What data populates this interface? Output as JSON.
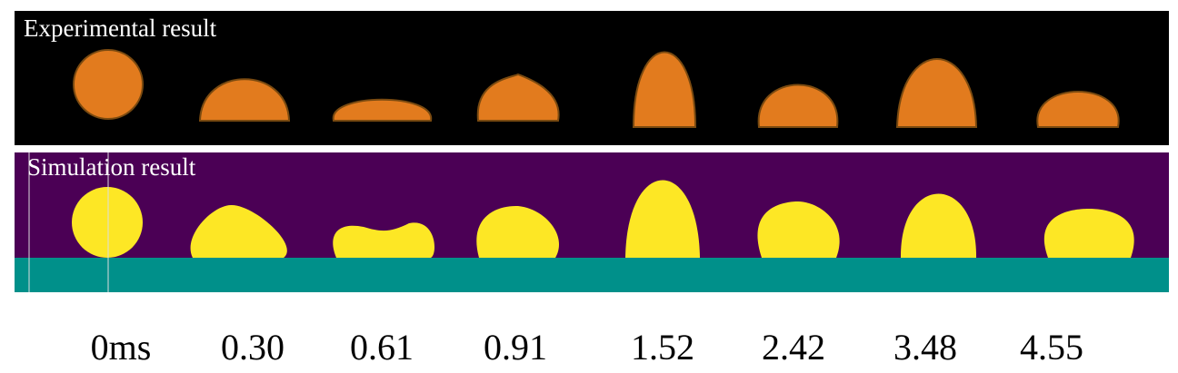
{
  "panels": [
    {
      "label": "Experimental result"
    },
    {
      "label": "Simulation result"
    }
  ],
  "time_labels": [
    "0ms",
    "0.30",
    "0.61",
    "0.91",
    "1.52",
    "2.42",
    "3.48",
    "4.55"
  ]
}
